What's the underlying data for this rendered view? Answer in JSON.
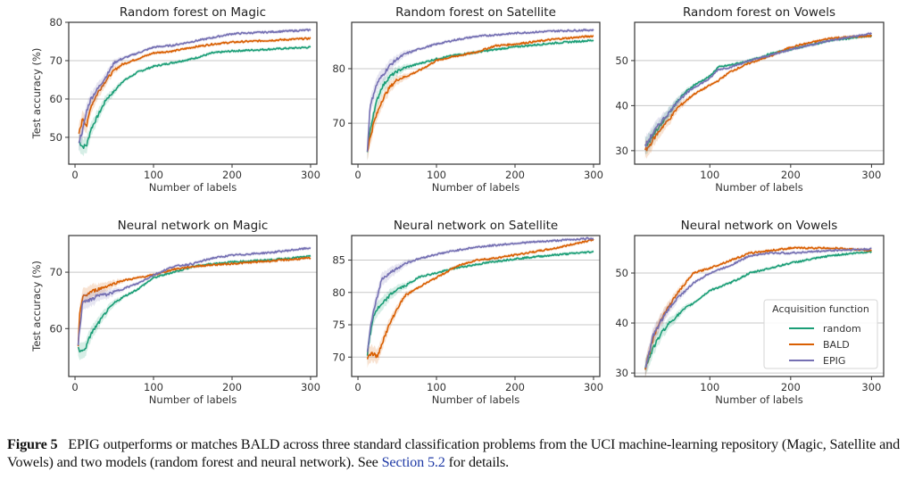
{
  "figure": {
    "caption_label": "Figure 5",
    "caption_text_1": "EPIG outperforms or matches BALD across three standard classification problems from the UCI machine-learning repository (Magic, Satellite and Vowels) and two models (random forest and neural network). See ",
    "caption_link": "Section 5.2",
    "caption_text_2": " for details.",
    "colors": {
      "random": "#1b9e77",
      "BALD": "#d95f02",
      "EPIG": "#7570b3"
    }
  },
  "chart_data": [
    {
      "type": "line",
      "title": "Random forest on Magic",
      "xlabel": "Number of labels",
      "ylabel": "Test accuracy (%)",
      "xlim": [
        -8,
        308
      ],
      "ylim": [
        43,
        80
      ],
      "xticks": [
        0,
        100,
        200,
        300
      ],
      "yticks": [
        50,
        60,
        70,
        80
      ],
      "grid": "y",
      "x": [
        5,
        10,
        15,
        20,
        30,
        40,
        50,
        60,
        80,
        100,
        125,
        150,
        175,
        200,
        250,
        300
      ],
      "series": [
        {
          "name": "random",
          "values": [
            49,
            47.5,
            48,
            52,
            56,
            60,
            62,
            64.5,
            67,
            68.5,
            69.5,
            70.5,
            72,
            72.5,
            73,
            73.5
          ]
        },
        {
          "name": "BALD",
          "values": [
            51,
            55,
            53,
            58,
            62,
            65,
            67.5,
            69,
            70.5,
            72,
            72.5,
            73.5,
            74.3,
            74.8,
            75.3,
            75.8
          ]
        },
        {
          "name": "EPIG",
          "values": [
            49,
            52,
            57,
            60,
            63,
            66,
            69.5,
            70.5,
            72,
            73.5,
            74,
            75,
            76,
            77,
            77.5,
            78
          ]
        }
      ]
    },
    {
      "type": "line",
      "title": "Random forest on Satellite",
      "xlabel": "Number of labels",
      "ylabel": "",
      "xlim": [
        -8,
        308
      ],
      "ylim": [
        62.5,
        88.5
      ],
      "xticks": [
        0,
        100,
        200,
        300
      ],
      "yticks": [
        70,
        80
      ],
      "grid": "y",
      "x": [
        12,
        15,
        20,
        25,
        30,
        40,
        50,
        60,
        80,
        100,
        125,
        150,
        175,
        200,
        250,
        300
      ],
      "series": [
        {
          "name": "random",
          "values": [
            65,
            68,
            72,
            74.5,
            76.5,
            78.5,
            79.5,
            80.2,
            81,
            81.8,
            82.5,
            83,
            83.5,
            84,
            84.7,
            85.2
          ]
        },
        {
          "name": "BALD",
          "values": [
            65,
            67,
            70,
            72,
            74,
            76.5,
            78,
            78.5,
            79.8,
            81.5,
            82.3,
            83,
            84.2,
            84.5,
            85.4,
            86
          ]
        },
        {
          "name": "EPIG",
          "values": [
            65,
            72.5,
            75.5,
            77.5,
            78.5,
            80.5,
            81.8,
            82.7,
            83.7,
            84.5,
            85.3,
            85.9,
            86.2,
            86.5,
            86.9,
            87.1
          ]
        }
      ]
    },
    {
      "type": "line",
      "title": "Random forest on Vowels",
      "xlabel": "Number of labels",
      "ylabel": "",
      "xlim": [
        7,
        315
      ],
      "ylim": [
        27,
        58.5
      ],
      "xticks": [
        100,
        200,
        300
      ],
      "yticks": [
        30,
        40,
        50
      ],
      "grid": "y",
      "x": [
        20,
        25,
        30,
        40,
        50,
        60,
        70,
        80,
        100,
        110,
        125,
        150,
        175,
        200,
        250,
        300
      ],
      "series": [
        {
          "name": "random",
          "values": [
            31,
            32,
            33.5,
            36,
            38.5,
            41,
            43,
            44.5,
            46.5,
            48.5,
            49,
            50,
            51.5,
            52.5,
            54.5,
            55.5
          ]
        },
        {
          "name": "BALD",
          "values": [
            30,
            31,
            32.5,
            35,
            37,
            39.5,
            41,
            42.5,
            44.5,
            45.5,
            47.5,
            49.5,
            51,
            53,
            55,
            55.5
          ]
        },
        {
          "name": "EPIG",
          "values": [
            31,
            32.5,
            34,
            36.5,
            38.5,
            41,
            42.5,
            44,
            46,
            48,
            48.5,
            50,
            51.2,
            52.5,
            54.5,
            56
          ]
        }
      ]
    },
    {
      "type": "line",
      "title": "Neural network on Magic",
      "xlabel": "Number of labels",
      "ylabel": "Test accuracy (%)",
      "xlim": [
        -8,
        308
      ],
      "ylim": [
        51.5,
        76.5
      ],
      "xticks": [
        0,
        100,
        200,
        300
      ],
      "yticks": [
        60,
        70
      ],
      "grid": "y",
      "x": [
        4,
        6,
        10,
        15,
        20,
        30,
        40,
        50,
        60,
        80,
        100,
        125,
        150,
        175,
        200,
        250,
        300
      ],
      "series": [
        {
          "name": "random",
          "values": [
            57,
            56,
            56,
            57,
            59,
            61,
            63,
            64.5,
            65.5,
            67,
            69,
            70,
            71,
            71.5,
            71.8,
            72.2,
            72.8
          ]
        },
        {
          "name": "BALD",
          "values": [
            57,
            63,
            65.5,
            66,
            66.5,
            67,
            67.5,
            68,
            68.5,
            69,
            69.5,
            70.5,
            71,
            71.3,
            71.5,
            72,
            72.5
          ]
        },
        {
          "name": "EPIG",
          "values": [
            57,
            60,
            65,
            65,
            65,
            66,
            66,
            66.5,
            67,
            68,
            69.5,
            71,
            71.5,
            72.5,
            73,
            73.5,
            74.3
          ]
        }
      ]
    },
    {
      "type": "line",
      "title": "Neural network on Satellite",
      "xlabel": "Number of labels",
      "ylabel": "",
      "xlim": [
        -8,
        308
      ],
      "ylim": [
        67,
        88.8
      ],
      "xticks": [
        0,
        100,
        200,
        300
      ],
      "yticks": [
        70,
        75,
        80,
        85
      ],
      "grid": "y",
      "x": [
        12,
        15,
        20,
        25,
        30,
        40,
        50,
        60,
        80,
        100,
        125,
        150,
        175,
        200,
        250,
        300
      ],
      "series": [
        {
          "name": "random",
          "values": [
            70.5,
            73,
            76.5,
            77.5,
            78,
            79.5,
            80.5,
            81,
            82.5,
            83,
            83.8,
            84.3,
            84.8,
            85.2,
            85.8,
            86.3
          ]
        },
        {
          "name": "BALD",
          "values": [
            70,
            70.5,
            70.5,
            70,
            72,
            75,
            77.5,
            79.5,
            81,
            82.3,
            84,
            85,
            85.3,
            85.8,
            86.8,
            88.2
          ]
        },
        {
          "name": "EPIG",
          "values": [
            70.5,
            74,
            77,
            79.5,
            82,
            83,
            83.7,
            84.5,
            85.3,
            85.9,
            86.5,
            87,
            87.3,
            87.6,
            88,
            88.4
          ]
        }
      ]
    },
    {
      "type": "line",
      "title": "Neural network on Vowels",
      "xlabel": "Number of labels",
      "ylabel": "",
      "xlim": [
        7,
        315
      ],
      "ylim": [
        29.3,
        57.5
      ],
      "xticks": [
        100,
        200,
        300
      ],
      "yticks": [
        30,
        40,
        50
      ],
      "grid": "y",
      "x": [
        20,
        25,
        30,
        40,
        50,
        60,
        70,
        80,
        100,
        125,
        150,
        175,
        200,
        250,
        300
      ],
      "series": [
        {
          "name": "random",
          "values": [
            31,
            33,
            35,
            38,
            40,
            41.5,
            43,
            44,
            46.5,
            48,
            50,
            51,
            52,
            53.5,
            54.3
          ]
        },
        {
          "name": "BALD",
          "values": [
            31,
            34,
            37,
            41,
            43.5,
            46,
            48,
            50,
            51,
            52.5,
            54,
            54.5,
            55,
            55,
            54.5
          ]
        },
        {
          "name": "EPIG",
          "values": [
            31,
            34,
            37.5,
            40.5,
            43,
            45,
            46.5,
            48,
            50,
            51.5,
            53.5,
            54,
            54,
            54.5,
            54.8
          ]
        }
      ],
      "legend": {
        "title": "Acquisition function",
        "entries": [
          "random",
          "BALD",
          "EPIG"
        ],
        "position": "lower-right"
      }
    }
  ]
}
